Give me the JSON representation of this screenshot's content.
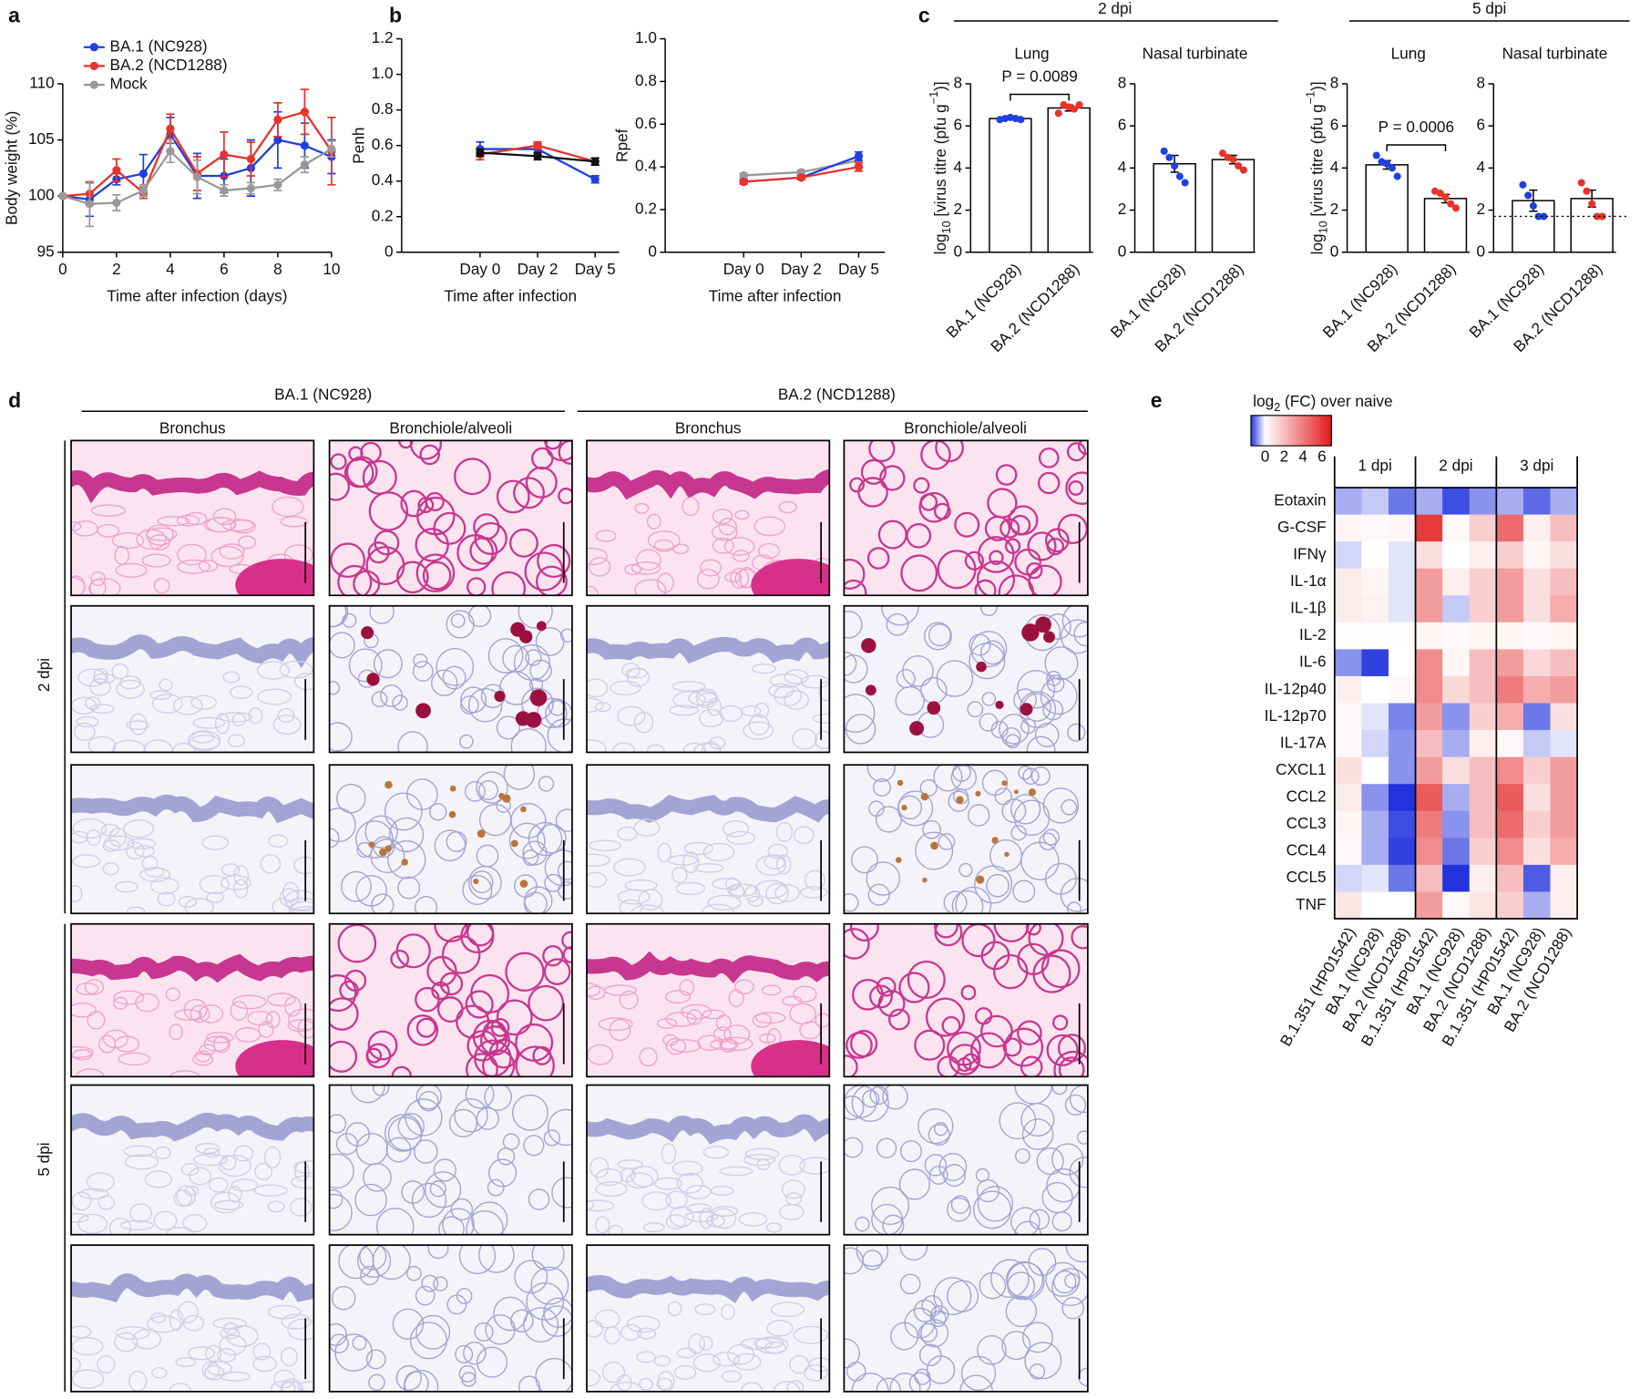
{
  "chart_data": [
    {
      "type": "line",
      "panel_label": "a",
      "x": [
        0,
        1,
        2,
        3,
        4,
        5,
        6,
        7,
        8,
        9,
        10
      ],
      "xlim": [
        0,
        10
      ],
      "xticks": [
        0,
        2,
        4,
        6,
        8,
        10
      ],
      "ylim": [
        95,
        110
      ],
      "yticks": [
        95,
        100,
        105,
        110
      ],
      "xlabel": "Time after infection (days)",
      "ylabel": "Body weight (%)",
      "legend": "upper-left",
      "series": [
        {
          "name": "BA.1 (NC928)",
          "color": "#1f3fe0",
          "values": [
            100,
            99.7,
            101.5,
            102,
            105.5,
            101.8,
            101.8,
            102.5,
            105,
            104.5,
            103.5
          ],
          "errors": [
            0,
            1.5,
            0.5,
            1.7,
            1.5,
            2,
            1.5,
            2.5,
            2.5,
            2,
            1.5
          ]
        },
        {
          "name": "BA.2 (NCD1288)",
          "color": "#e8322a",
          "values": [
            100,
            100.2,
            102.3,
            100.3,
            106,
            102,
            103.7,
            103.3,
            106.8,
            107.5,
            104
          ],
          "errors": [
            0,
            1,
            1,
            0.5,
            1.3,
            1.5,
            2,
            1.5,
            1.5,
            2,
            3
          ]
        },
        {
          "name": "Mock",
          "color": "#999999",
          "values": [
            100,
            99.3,
            99.4,
            100.5,
            104,
            101.7,
            100.5,
            100.7,
            101,
            102.8,
            104.2
          ],
          "errors": [
            0,
            2,
            0.7,
            0.5,
            1,
            1.5,
            0.5,
            0.5,
            0.5,
            0.7,
            0.7
          ]
        }
      ]
    },
    {
      "type": "line",
      "panel_label": "b",
      "categories": [
        "Day 0",
        "Day 2",
        "Day 5"
      ],
      "ylim": [
        0,
        1.2
      ],
      "yticks": [
        0,
        0.2,
        0.4,
        0.6,
        0.8,
        {
          "value": 1,
          "label": "1.0"
        },
        1.2
      ],
      "xlabel": "Time after infection",
      "ylabel": "Penh",
      "series": [
        {
          "name": "BA.1 (NC928)",
          "color": "#1f3fe0",
          "values": [
            0.58,
            0.58,
            0.41
          ],
          "errors": [
            0.04,
            0.03,
            0.02
          ]
        },
        {
          "name": "BA.2 (NCD1288)",
          "color": "#e8322a",
          "values": [
            0.55,
            0.6,
            0.51
          ],
          "errors": [
            0.03,
            0.02,
            0.02
          ]
        },
        {
          "name": "Mock",
          "color": "#111111",
          "values": [
            0.56,
            0.54,
            0.51
          ],
          "errors": [
            0.02,
            0.02,
            0.02
          ]
        }
      ]
    },
    {
      "type": "line",
      "categories": [
        "Day 0",
        "Day 2",
        "Day 5"
      ],
      "ylim": [
        0,
        1
      ],
      "yticks": [
        0,
        0.2,
        0.4,
        0.6,
        0.8,
        {
          "value": 1,
          "label": "1.0"
        }
      ],
      "xlabel": "Time after infection",
      "ylabel": "Rpef",
      "series": [
        {
          "name": "Mock",
          "color": "#999999",
          "values": [
            0.36,
            0.375,
            0.43
          ],
          "errors": [
            0.01,
            0.01,
            0.02
          ]
        },
        {
          "name": "BA.1 (NC928)",
          "color": "#1f3fe0",
          "values": [
            0.33,
            0.35,
            0.45
          ],
          "errors": [
            0.01,
            0.01,
            0.02
          ]
        },
        {
          "name": "BA.2 (NCD1288)",
          "color": "#e8322a",
          "values": [
            0.33,
            0.35,
            0.4
          ],
          "errors": [
            0.01,
            0.01,
            0.02
          ]
        }
      ]
    },
    {
      "type": "bar",
      "panel_label": "c",
      "title": "Lung",
      "categories": [
        "BA.1 (NC928)",
        "BA.2 (NCD1288)"
      ],
      "values": [
        6.35,
        6.85
      ],
      "errors": [
        0.06,
        0.14
      ],
      "points": [
        [
          6.3,
          6.35,
          6.4,
          6.35,
          6.3
        ],
        [
          6.6,
          7.0,
          6.9,
          6.8,
          7.0
        ]
      ],
      "colors": [
        "#1f3fe0",
        "#e8322a"
      ],
      "ylim": [
        0,
        8
      ],
      "yticks": [
        0,
        2,
        4,
        6,
        8
      ],
      "ylabel_parts": [
        "log",
        "10",
        " [virus titre (pfu g",
        "−1",
        ")]"
      ],
      "annotation": "P = 0.0089"
    },
    {
      "type": "bar",
      "title": "Nasal turbinate",
      "categories": [
        "BA.1 (NC928)",
        "BA.2 (NCD1288)"
      ],
      "values": [
        4.2,
        4.4
      ],
      "errors": [
        0.4,
        0.2
      ],
      "points": [
        [
          4.8,
          4.5,
          4.1,
          3.6,
          3.3
        ],
        [
          4.7,
          4.5,
          4.4,
          4.1,
          3.9
        ]
      ],
      "colors": [
        "#1f3fe0",
        "#e8322a"
      ],
      "ylim": [
        0,
        8
      ],
      "yticks": [
        0,
        2,
        4,
        6,
        8
      ]
    },
    {
      "type": "bar",
      "title": "Lung",
      "categories": [
        "BA.1 (NC928)",
        "BA.2 (NCD1288)"
      ],
      "values": [
        4.15,
        2.55
      ],
      "errors": [
        0.2,
        0.2
      ],
      "points": [
        [
          4.6,
          4.3,
          4.2,
          4.0,
          3.6
        ],
        [
          2.9,
          2.8,
          2.6,
          2.3,
          2.1
        ]
      ],
      "colors": [
        "#1f3fe0",
        "#e8322a"
      ],
      "ylim": [
        0,
        8
      ],
      "yticks": [
        0,
        2,
        4,
        6,
        8
      ],
      "ylabel_parts": [
        "log",
        "10",
        " [virus titre (pfu g",
        "−1",
        ")]"
      ],
      "annotation": "P = 0.0006"
    },
    {
      "type": "bar",
      "title": "Nasal turbinate",
      "categories": [
        "BA.1 (NC928)",
        "BA.2 (NCD1288)"
      ],
      "values": [
        2.45,
        2.55
      ],
      "errors": [
        0.5,
        0.4
      ],
      "points": [
        [
          3.2,
          2.7,
          2.2,
          1.7,
          1.7
        ],
        [
          3.3,
          2.9,
          2.3,
          1.7,
          1.7
        ]
      ],
      "colors": [
        "#1f3fe0",
        "#e8322a"
      ],
      "ylim": [
        0,
        8
      ],
      "yticks": [
        0,
        2,
        4,
        6,
        8
      ],
      "detection_limit": 1.7
    },
    {
      "type": "heatmap",
      "panel_label": "e",
      "colorbar_label_parts": [
        "log",
        "2",
        " (FC) over naive"
      ],
      "zlim": [
        -1.5,
        7
      ],
      "zticks": [
        0,
        2,
        4,
        6
      ],
      "colormap": [
        "#2233dd",
        "#ffffff",
        "#e3191c"
      ],
      "center": 0,
      "groups": [
        "1 dpi",
        "2 dpi",
        "3 dpi"
      ],
      "categories": [
        "B.1.351 (HP01542)",
        "BA.1 (NC928)",
        "BA.2 (NCD1288)",
        "B.1.351 (HP01542)",
        "BA.1 (NC928)",
        "BA.2 (NCD1288)",
        "B.1.351 (HP01542)",
        "BA.1 (NC928)",
        "BA.2 (NCD1288)"
      ],
      "rows": [
        "Eotaxin",
        "G-CSF",
        "IFNγ",
        "IL-1α",
        "IL-1β",
        "IL-2",
        "IL-6",
        "IL-12p40",
        "IL-12p70",
        "IL-17A",
        "CXCL1",
        "CCL2",
        "CCL3",
        "CCL4",
        "CCL5",
        "TNF"
      ],
      "values": [
        [
          -0.6,
          -0.4,
          -1.0,
          -0.6,
          -1.3,
          -0.8,
          -0.6,
          -1.1,
          -0.6
        ],
        [
          0.3,
          0.2,
          0.3,
          6,
          0.2,
          1.5,
          4.5,
          0.5,
          2
        ],
        [
          -0.3,
          0,
          -0.2,
          1,
          0,
          0.5,
          1.5,
          0.3,
          1
        ],
        [
          0.6,
          0.3,
          -0.2,
          3,
          0.5,
          1.5,
          3,
          1,
          2
        ],
        [
          0.6,
          0.4,
          -0.2,
          3,
          -0.4,
          1.5,
          3,
          1,
          2.5
        ],
        [
          0.1,
          0.1,
          0.1,
          0.3,
          0.2,
          0.3,
          0.3,
          0.2,
          0.3
        ],
        [
          -0.8,
          -1.4,
          0,
          3.5,
          0.3,
          2,
          3,
          1.2,
          2
        ],
        [
          0.5,
          0,
          0.2,
          3.5,
          1.2,
          2,
          4,
          2.5,
          3
        ],
        [
          0.2,
          -0.2,
          -0.9,
          3,
          -0.8,
          1.5,
          2.5,
          -1,
          1
        ],
        [
          0.2,
          -0.3,
          -0.8,
          2,
          -0.6,
          0.5,
          0.2,
          -0.4,
          -0.2
        ],
        [
          1,
          0,
          -0.8,
          3,
          1,
          2,
          3.5,
          1.5,
          3
        ],
        [
          0.6,
          -0.8,
          -1.5,
          5,
          -0.6,
          2,
          5,
          1,
          3
        ],
        [
          0.3,
          -0.6,
          -1.3,
          4,
          -0.8,
          2,
          4.5,
          1.5,
          3
        ],
        [
          0.2,
          -0.6,
          -1.4,
          3.5,
          -1,
          1.5,
          3.5,
          1,
          2.5
        ],
        [
          -0.3,
          -0.2,
          -1,
          2,
          -1.8,
          0.5,
          2,
          -1.2,
          0.5
        ],
        [
          0.8,
          0,
          0,
          3,
          0.2,
          0.8,
          1.5,
          -0.6,
          0.5
        ]
      ]
    }
  ],
  "panel_c_groups": [
    "2 dpi",
    "5 dpi"
  ],
  "panel_d": {
    "label": "d",
    "strains": [
      "BA.1 (NC928)",
      "BA.2 (NCD1288)"
    ],
    "regions": [
      "Bronchus",
      "Bronchiole/alveoli",
      "Bronchus",
      "Bronchiole/alveoli"
    ],
    "timepoints": [
      "2 dpi",
      "5 dpi"
    ]
  }
}
